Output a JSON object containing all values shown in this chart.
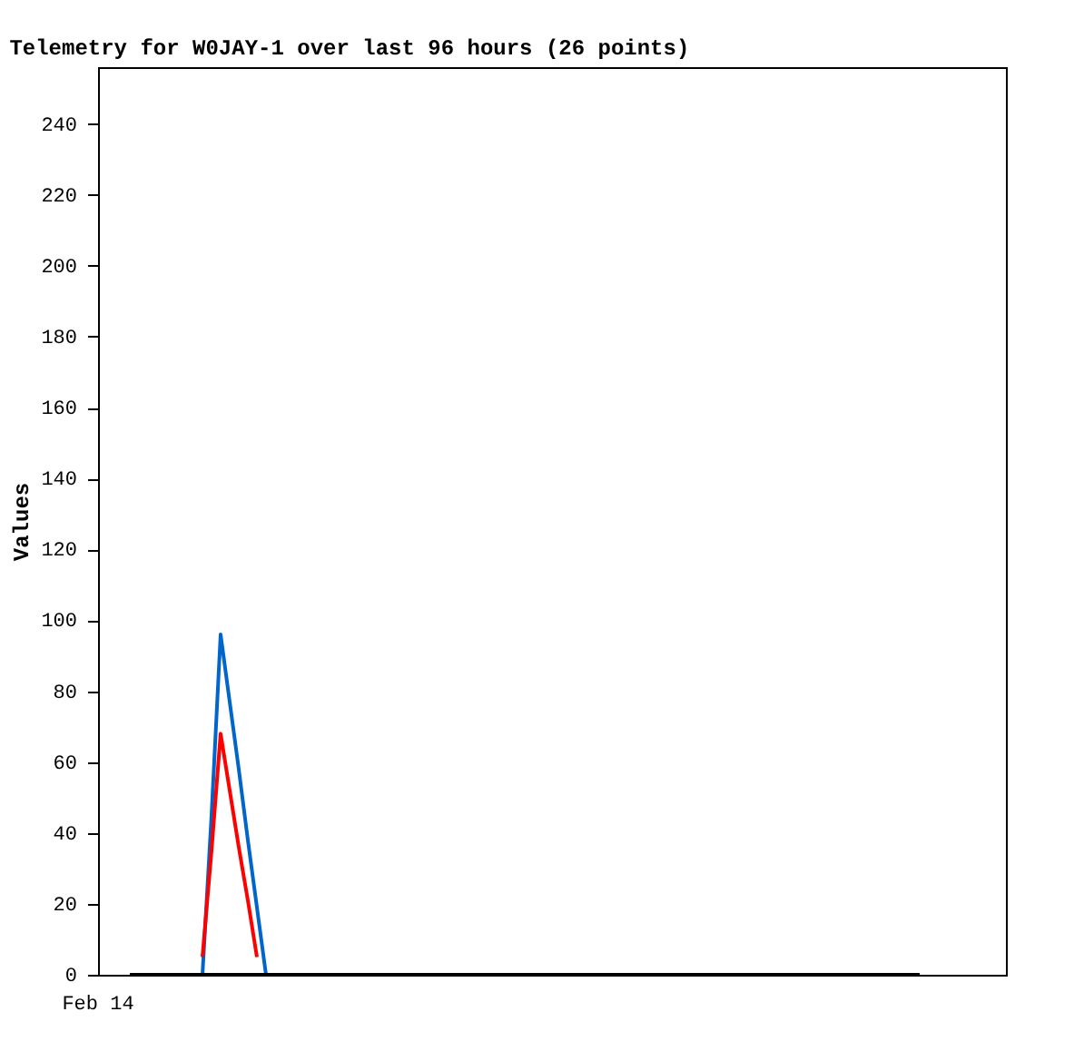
{
  "chart_data": {
    "type": "line",
    "title": "Telemetry for W0JAY-1 over last 96 hours (26 points)",
    "ylabel": "Values",
    "annotations": [
      "Feb 14"
    ],
    "categories": [
      null,
      null,
      null,
      null,
      null,
      null,
      null,
      null,
      null,
      null,
      null,
      null,
      null,
      null,
      null,
      null,
      null,
      null,
      null,
      null,
      null,
      null,
      null,
      null,
      null,
      null,
      null,
      null,
      null,
      null,
      null,
      null,
      null,
      null,
      null,
      null,
      null,
      null,
      null,
      null,
      null,
      null,
      null,
      null,
      null,
      null,
      null,
      null,
      null,
      null,
      null,
      null,
      null,
      null,
      null,
      null,
      null,
      null,
      null,
      null,
      null,
      null,
      null,
      null,
      null,
      null,
      null,
      null,
      null,
      null,
      null,
      null,
      null,
      null,
      null,
      null,
      null,
      null,
      null,
      null,
      null,
      null,
      null,
      null,
      null,
      null,
      null,
      null,
      null,
      null,
      null,
      null,
      null,
      null,
      null,
      null,
      null,
      null,
      null,
      null
    ],
    "ylim": [
      0,
      256
    ],
    "yticks": [
      0,
      20,
      40,
      60,
      80,
      100,
      120,
      140,
      160,
      180,
      200,
      220,
      240
    ],
    "tick_labels": "y",
    "grid": false,
    "line_style": "solid",
    "series": [
      {
        "color": "#0066cc",
        "values": [
          null,
          null,
          null,
          null,
          null,
          null,
          null,
          null,
          null,
          null,
          null,
          0,
          45,
          96,
          77,
          58,
          38,
          19,
          0,
          null,
          null,
          null,
          null,
          null,
          null,
          null,
          null,
          null,
          null,
          null,
          null,
          null,
          null,
          null,
          null,
          null,
          null,
          null,
          null,
          null,
          null,
          null,
          null,
          null,
          null,
          null,
          null,
          null,
          null,
          null,
          null,
          null,
          null,
          null,
          null,
          null,
          null,
          null,
          null,
          null,
          null,
          null,
          null,
          null,
          null,
          null,
          null,
          null,
          null,
          null,
          null,
          null,
          null,
          null,
          null,
          null,
          null,
          null,
          null,
          null,
          null,
          null,
          null,
          null,
          null,
          null,
          null,
          null,
          null,
          null,
          null,
          null,
          null,
          null,
          null,
          null,
          null,
          null,
          null,
          null
        ]
      },
      {
        "color": "#ff0000",
        "values": [
          null,
          null,
          null,
          null,
          null,
          null,
          null,
          null,
          null,
          null,
          null,
          5,
          35,
          68,
          52,
          36,
          21,
          5,
          null,
          null,
          null,
          null,
          null,
          null,
          null,
          null,
          null,
          null,
          null,
          null,
          null,
          null,
          null,
          null,
          null,
          null,
          null,
          null,
          null,
          null,
          null,
          null,
          null,
          null,
          null,
          null,
          null,
          null,
          null,
          null,
          null,
          null,
          null,
          null,
          null,
          null,
          null,
          null,
          null,
          null,
          null,
          null,
          null,
          null,
          null,
          null,
          null,
          null,
          null,
          null,
          null,
          null,
          null,
          null,
          null,
          null,
          null,
          null,
          null,
          null,
          null,
          null,
          null,
          null,
          null,
          null,
          null,
          null,
          null,
          null,
          null,
          null,
          null,
          null,
          null,
          null,
          null,
          null,
          null,
          null
        ]
      },
      {
        "color": "#000000",
        "values": [
          null,
          null,
          null,
          0,
          0,
          0,
          0,
          0,
          0,
          0,
          0,
          0,
          0,
          0,
          0,
          0,
          0,
          0,
          0,
          0,
          0,
          0,
          0,
          0,
          0,
          0,
          0,
          0,
          0,
          0,
          0,
          0,
          0,
          0,
          0,
          0,
          0,
          0,
          0,
          0,
          0,
          0,
          0,
          0,
          0,
          0,
          0,
          0,
          0,
          0,
          0,
          0,
          0,
          0,
          0,
          0,
          0,
          0,
          0,
          0,
          0,
          0,
          0,
          0,
          0,
          0,
          0,
          0,
          0,
          0,
          0,
          0,
          0,
          0,
          0,
          0,
          0,
          0,
          0,
          0,
          0,
          0,
          0,
          0,
          0,
          0,
          0,
          0,
          0,
          0,
          0,
          null,
          null,
          null,
          null,
          null,
          null,
          null,
          null,
          null
        ]
      }
    ]
  }
}
